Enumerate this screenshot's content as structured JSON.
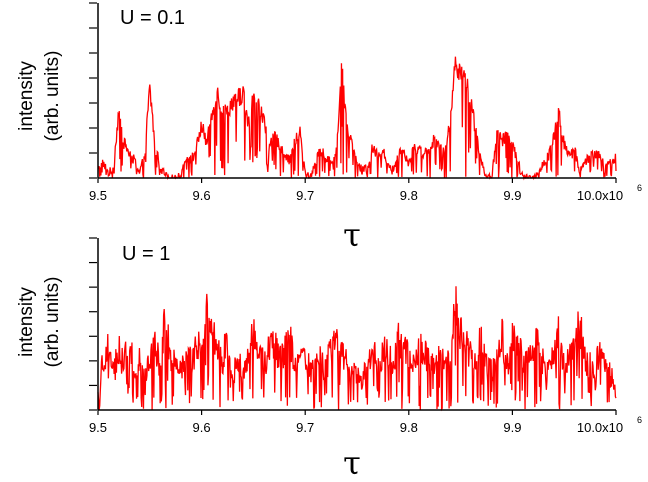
{
  "chart_data": [
    {
      "type": "line",
      "annotation": "U = 0.1",
      "ylabel_line1": "intensity",
      "ylabel_line2": "(arb. units)",
      "xlabel": "τ",
      "xlim": [
        9.5,
        10.0
      ],
      "x_ticks": [
        9.5,
        9.6,
        9.7,
        9.8,
        9.9,
        10.0
      ],
      "x_tick_labels": [
        "9.5",
        "9.6",
        "9.7",
        "9.8",
        "9.9",
        "10.0x10"
      ],
      "x_exponent_label": "6",
      "ylim": [
        0,
        7
      ],
      "y_ticks": [
        1,
        2,
        3,
        4,
        5,
        6,
        7
      ],
      "series_color": "#ff0000",
      "series": [
        {
          "noise_amplitude": 0.35,
          "x": [
            9.5,
            9.505,
            9.51,
            9.515,
            9.52,
            9.525,
            9.53,
            9.535,
            9.54,
            9.545,
            9.55,
            9.555,
            9.56,
            9.565,
            9.57,
            9.575,
            9.58,
            9.585,
            9.59,
            9.595,
            9.6,
            9.605,
            9.61,
            9.615,
            9.62,
            9.625,
            9.63,
            9.635,
            9.64,
            9.645,
            9.65,
            9.655,
            9.66,
            9.665,
            9.67,
            9.675,
            9.68,
            9.685,
            9.69,
            9.695,
            9.7,
            9.705,
            9.71,
            9.715,
            9.72,
            9.725,
            9.73,
            9.735,
            9.74,
            9.745,
            9.75,
            9.755,
            9.76,
            9.765,
            9.77,
            9.775,
            9.78,
            9.785,
            9.79,
            9.795,
            9.8,
            9.805,
            9.81,
            9.815,
            9.82,
            9.825,
            9.83,
            9.835,
            9.84,
            9.845,
            9.85,
            9.855,
            9.86,
            9.865,
            9.87,
            9.875,
            9.88,
            9.885,
            9.89,
            9.895,
            9.9,
            9.905,
            9.91,
            9.915,
            9.92,
            9.925,
            9.93,
            9.935,
            9.94,
            9.945,
            9.95,
            9.955,
            9.96,
            9.965,
            9.97,
            9.975,
            9.98,
            9.985,
            9.99,
            9.995,
            10.0
          ],
          "y": [
            0.3,
            0.6,
            0.2,
            0.4,
            2.7,
            1.4,
            1.0,
            0.7,
            0.2,
            0.9,
            3.6,
            1.3,
            0.5,
            0.1,
            0.0,
            0.0,
            0.1,
            0.9,
            0.7,
            1.2,
            2.1,
            1.4,
            2.5,
            3.4,
            2.8,
            2.6,
            3.1,
            3.2,
            3.4,
            2.1,
            3.2,
            2.9,
            2.3,
            1.2,
            1.6,
            1.4,
            1.0,
            0.7,
            1.5,
            1.8,
            0.2,
            0.0,
            0.7,
            1.1,
            0.8,
            0.6,
            1.0,
            4.4,
            2.2,
            1.4,
            0.6,
            0.3,
            0.4,
            1.2,
            0.9,
            1.1,
            0.5,
            0.4,
            1.0,
            1.1,
            0.6,
            1.3,
            1.1,
            1.0,
            1.2,
            1.6,
            1.3,
            1.0,
            2.2,
            4.7,
            4.3,
            4.1,
            3.0,
            1.8,
            0.6,
            0.1,
            0.0,
            1.8,
            1.5,
            1.7,
            1.3,
            0.8,
            0.1,
            0.0,
            0.0,
            0.2,
            0.6,
            0.9,
            1.6,
            2.7,
            1.3,
            0.9,
            1.1,
            0.3,
            0.6,
            0.9,
            1.0,
            0.8,
            0.4,
            0.7,
            0.8
          ]
        }
      ]
    },
    {
      "type": "line",
      "annotation": "U = 1",
      "ylabel_line1": "intensity",
      "ylabel_line2": "(arb. units)",
      "xlabel": "τ",
      "xlim": [
        9.5,
        10.0
      ],
      "x_ticks": [
        9.5,
        9.6,
        9.7,
        9.8,
        9.9,
        10.0
      ],
      "x_tick_labels": [
        "9.5",
        "9.6",
        "9.7",
        "9.8",
        "9.9",
        "10.0x10"
      ],
      "x_exponent_label": "6",
      "ylim": [
        0,
        7
      ],
      "y_ticks": [
        1,
        2,
        3,
        4,
        5,
        6,
        7
      ],
      "series_color": "#ff0000",
      "series": [
        {
          "noise_amplitude": 0.7,
          "x": [
            9.5,
            9.505,
            9.51,
            9.515,
            9.52,
            9.525,
            9.53,
            9.535,
            9.54,
            9.545,
            9.55,
            9.555,
            9.56,
            9.565,
            9.57,
            9.575,
            9.58,
            9.585,
            9.59,
            9.595,
            9.6,
            9.605,
            9.61,
            9.615,
            9.62,
            9.625,
            9.63,
            9.635,
            9.64,
            9.645,
            9.65,
            9.655,
            9.66,
            9.665,
            9.67,
            9.675,
            9.68,
            9.685,
            9.69,
            9.695,
            9.7,
            9.705,
            9.71,
            9.715,
            9.72,
            9.725,
            9.73,
            9.735,
            9.74,
            9.745,
            9.75,
            9.755,
            9.76,
            9.765,
            9.77,
            9.775,
            9.78,
            9.785,
            9.79,
            9.795,
            9.8,
            9.805,
            9.81,
            9.815,
            9.82,
            9.825,
            9.83,
            9.835,
            9.84,
            9.845,
            9.85,
            9.855,
            9.86,
            9.865,
            9.87,
            9.875,
            9.88,
            9.885,
            9.89,
            9.895,
            9.9,
            9.905,
            9.91,
            9.915,
            9.92,
            9.925,
            9.93,
            9.935,
            9.94,
            9.945,
            9.95,
            9.955,
            9.96,
            9.965,
            9.97,
            9.975,
            9.98,
            9.985,
            9.99,
            9.995,
            10.0
          ],
          "y": [
            1.2,
            2.0,
            2.8,
            1.5,
            2.4,
            1.8,
            2.9,
            1.6,
            2.2,
            1.4,
            2.3,
            2.7,
            1.8,
            3.7,
            2.2,
            1.9,
            1.6,
            2.5,
            1.8,
            2.6,
            3.0,
            4.0,
            3.4,
            2.4,
            2.0,
            2.9,
            1.5,
            1.9,
            1.7,
            2.1,
            3.3,
            2.4,
            1.8,
            2.5,
            2.9,
            1.9,
            2.3,
            3.0,
            1.6,
            1.9,
            2.2,
            1.5,
            1.8,
            2.0,
            1.7,
            2.4,
            3.5,
            2.2,
            1.9,
            1.5,
            1.4,
            1.2,
            1.8,
            2.3,
            1.9,
            2.4,
            2.2,
            1.8,
            2.8,
            2.6,
            2.2,
            1.7,
            2.4,
            2.5,
            1.9,
            2.1,
            2.3,
            1.8,
            1.9,
            4.2,
            3.2,
            2.6,
            2.3,
            1.8,
            3.1,
            1.8,
            1.6,
            2.1,
            3.0,
            1.9,
            2.8,
            3.0,
            1.9,
            2.3,
            2.6,
            3.0,
            1.8,
            1.7,
            2.4,
            3.3,
            1.7,
            2.2,
            2.6,
            3.6,
            2.1,
            1.8,
            1.9,
            2.2,
            1.6,
            1.4,
            1.3
          ]
        }
      ]
    }
  ]
}
